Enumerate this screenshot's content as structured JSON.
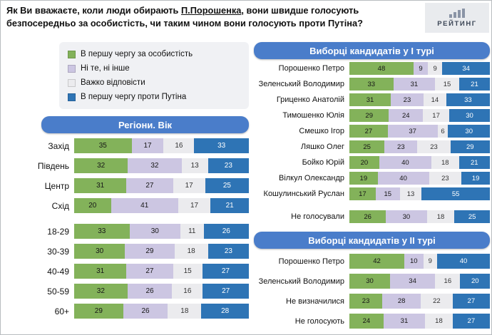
{
  "title": {
    "part1": "Як Ви вважаєте, коли люди обирають ",
    "underlined": "П.Порошенка",
    "part2": ", вони швидше голосують безпосередньо за особистість, чи таким чином вони голосують проти Путіна?"
  },
  "logo": {
    "text": "РЕЙТИНГ"
  },
  "chart_data": {
    "type": "bar",
    "stacked": true,
    "orientation": "horizontal",
    "unit": "%",
    "xlim": [
      0,
      100
    ],
    "legend_position": "top-left",
    "series": [
      {
        "name": "В першу чергу за особистість",
        "color": "#83b25a",
        "text_color": "#161616"
      },
      {
        "name": "Ні те, ні інше",
        "color": "#ccc6e2",
        "text_color": "#161616"
      },
      {
        "name": "Важко відповісти",
        "color": "#ebebee",
        "text_color": "#333333"
      },
      {
        "name": "В першу чергу проти Путіна",
        "color": "#2e74b5",
        "text_color": "#ffffff"
      }
    ],
    "panels": [
      {
        "id": "regions-age",
        "header": "Регіони. Вік",
        "groups": [
          {
            "rows": [
              {
                "label": "Захід",
                "values": [
                  35,
                  17,
                  16,
                  33
                ]
              },
              {
                "label": "Південь",
                "values": [
                  32,
                  32,
                  13,
                  23
                ]
              },
              {
                "label": "Центр",
                "values": [
                  31,
                  27,
                  17,
                  25
                ]
              },
              {
                "label": "Схід",
                "values": [
                  20,
                  41,
                  17,
                  21
                ]
              }
            ]
          },
          {
            "rows": [
              {
                "label": "18-29",
                "values": [
                  33,
                  30,
                  11,
                  26
                ]
              },
              {
                "label": "30-39",
                "values": [
                  30,
                  29,
                  18,
                  23
                ]
              },
              {
                "label": "40-49",
                "values": [
                  31,
                  27,
                  15,
                  27
                ]
              },
              {
                "label": "50-59",
                "values": [
                  32,
                  26,
                  16,
                  27
                ]
              },
              {
                "label": "60+",
                "values": [
                  29,
                  26,
                  18,
                  28
                ]
              }
            ]
          }
        ]
      },
      {
        "id": "round1",
        "header": "Виборці кандидатів у І турі",
        "groups": [
          {
            "rows": [
              {
                "label": "Порошенко Петро",
                "values": [
                  48,
                  9,
                  9,
                  34
                ]
              },
              {
                "label": "Зеленський Володимир",
                "values": [
                  33,
                  31,
                  15,
                  21
                ]
              },
              {
                "label": "Гриценко Анатолій",
                "values": [
                  31,
                  23,
                  14,
                  33
                ]
              },
              {
                "label": "Тимошенко Юлія",
                "values": [
                  29,
                  24,
                  17,
                  30
                ]
              },
              {
                "label": "Смешко Ігор",
                "values": [
                  27,
                  37,
                  6,
                  30
                ]
              },
              {
                "label": "Ляшко Олег",
                "values": [
                  25,
                  23,
                  23,
                  29
                ]
              },
              {
                "label": "Бойко Юрій",
                "values": [
                  20,
                  40,
                  18,
                  21
                ]
              },
              {
                "label": "Вілкул Олександр",
                "values": [
                  19,
                  40,
                  23,
                  19
                ]
              },
              {
                "label": "Кошулинський Руслан",
                "values": [
                  17,
                  15,
                  13,
                  55
                ]
              }
            ]
          },
          {
            "rows": [
              {
                "label": "Не голосували",
                "values": [
                  26,
                  30,
                  18,
                  25
                ]
              }
            ]
          }
        ]
      },
      {
        "id": "round2",
        "header": "Виборці кандидатів у ІІ турі",
        "groups": [
          {
            "rows": [
              {
                "label": "Порошенко Петро",
                "values": [
                  42,
                  10,
                  9,
                  40
                ]
              },
              {
                "label": "Зеленський Володимир",
                "values": [
                  30,
                  34,
                  16,
                  20
                ]
              },
              {
                "label": "Не визначилися",
                "values": [
                  23,
                  28,
                  22,
                  27
                ]
              },
              {
                "label": "Не голосують",
                "values": [
                  24,
                  31,
                  18,
                  27
                ]
              }
            ]
          }
        ]
      }
    ]
  }
}
